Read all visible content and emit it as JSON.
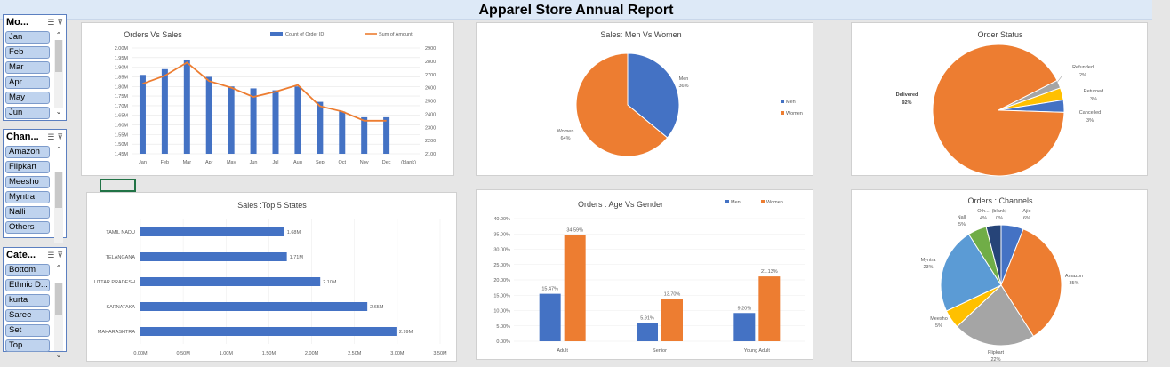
{
  "title": "Apparel Store Annual Report",
  "slicers": {
    "month": {
      "title": "Mo...",
      "items": [
        "Jan",
        "Feb",
        "Mar",
        "Apr",
        "May",
        "Jun"
      ]
    },
    "channel": {
      "title": "Chan...",
      "items": [
        "Amazon",
        "Flipkart",
        "Meesho",
        "Myntra",
        "Nalli",
        "Others"
      ]
    },
    "category": {
      "title": "Cate...",
      "items": [
        "Bottom",
        "Ethnic D...",
        "kurta",
        "Saree",
        "Set",
        "Top"
      ]
    }
  },
  "colors": {
    "blue": "#4472c4",
    "orange": "#ed7d31",
    "gray": "#a5a5a5",
    "yellow": "#ffc000",
    "lightblue": "#5b9bd5",
    "green": "#70ad47",
    "navy": "#264478"
  },
  "chart_data": [
    {
      "type": "bar",
      "title": "Orders Vs Sales",
      "categories": [
        "Jan",
        "Feb",
        "Mar",
        "Apr",
        "May",
        "Jun",
        "Jul",
        "Aug",
        "Sep",
        "Oct",
        "Nov",
        "Dec",
        "(blank)"
      ],
      "series": [
        {
          "name": "Count of Order ID",
          "type": "bar",
          "axis": "left",
          "values": [
            1.86,
            1.89,
            1.94,
            1.85,
            1.8,
            1.79,
            1.78,
            1.8,
            1.72,
            1.67,
            1.64,
            1.64,
            null
          ]
        },
        {
          "name": "Sum of Amount",
          "type": "line",
          "axis": "right",
          "values": [
            2630,
            2690,
            2790,
            2650,
            2600,
            2530,
            2570,
            2620,
            2460,
            2420,
            2350,
            2350,
            null
          ]
        }
      ],
      "yleft_ticks": [
        "1.45M",
        "1.50M",
        "1.55M",
        "1.60M",
        "1.65M",
        "1.70M",
        "1.75M",
        "1.80M",
        "1.85M",
        "1.90M",
        "1.95M",
        "2.00M"
      ],
      "yleft_lim": [
        1.45,
        2.0
      ],
      "yright_ticks": [
        "2100",
        "2200",
        "2300",
        "2400",
        "2500",
        "2600",
        "2700",
        "2800",
        "2900"
      ],
      "yright_lim": [
        2100,
        2900
      ],
      "legend": "top-right"
    },
    {
      "type": "pie",
      "title": "Sales: Men Vs Women",
      "labels": [
        "Men",
        "Women"
      ],
      "values": [
        36,
        64
      ],
      "value_labels": [
        "36%",
        "64%"
      ],
      "legend": "right"
    },
    {
      "type": "pie",
      "title": "Order Status",
      "labels": [
        "Delivered",
        "Refunded",
        "Returned",
        "Cancelled"
      ],
      "values": [
        92,
        2,
        3,
        3
      ],
      "value_labels": [
        "92%",
        "2%",
        "3%",
        "3%"
      ]
    },
    {
      "type": "bar",
      "orientation": "horizontal",
      "title": "Sales :Top 5 States",
      "categories": [
        "TAMIL NADU",
        "TELANGANA",
        "UTTAR PRADESH",
        "KARNATAKA",
        "MAHARASHTRA"
      ],
      "values": [
        1.68,
        1.71,
        2.1,
        2.65,
        2.99
      ],
      "value_labels": [
        "1.68M",
        "1.71M",
        "2.10M",
        "2.65M",
        "2.99M"
      ],
      "xlim": [
        0,
        3.5
      ],
      "x_ticks": [
        "0.00M",
        "0.50M",
        "1.00M",
        "1.50M",
        "2.00M",
        "2.50M",
        "3.00M",
        "3.50M"
      ]
    },
    {
      "type": "bar",
      "title": "Orders : Age Vs Gender",
      "categories": [
        "Adult",
        "Senior",
        "Young Adult"
      ],
      "series": [
        {
          "name": "Men",
          "values": [
            15.47,
            5.91,
            9.2
          ],
          "labels": [
            "15.47%",
            "5.91%",
            "9.20%"
          ]
        },
        {
          "name": "Women",
          "values": [
            34.59,
            13.7,
            21.13
          ],
          "labels": [
            "34.59%",
            "13.70%",
            "21.13%"
          ]
        }
      ],
      "ylim": [
        0,
        40
      ],
      "y_ticks": [
        "0.00%",
        "5.00%",
        "10.00%",
        "15.00%",
        "20.00%",
        "25.00%",
        "30.00%",
        "35.00%",
        "40.00%"
      ],
      "legend": "top-right"
    },
    {
      "type": "pie",
      "title": "Orders : Channels",
      "labels": [
        "Ajio",
        "Amazon",
        "Flipkart",
        "Meesho",
        "Myntra",
        "Nalli",
        "Oth...",
        "(blank)"
      ],
      "values": [
        6,
        35,
        22,
        5,
        23,
        5,
        4,
        0
      ],
      "value_labels": [
        "6%",
        "35%",
        "22%",
        "5%",
        "23%",
        "5%",
        "4%",
        "0%"
      ]
    }
  ]
}
